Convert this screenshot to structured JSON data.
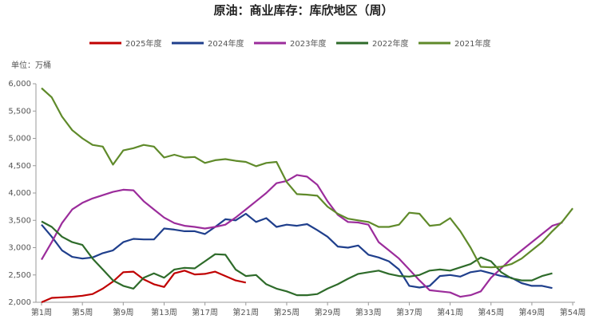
{
  "chart_data": {
    "type": "line",
    "title": "原油：商业库存：库欣地区（周）",
    "unit": "单位：万桶",
    "categories": [
      "第1周",
      null,
      null,
      null,
      "第5周",
      null,
      null,
      null,
      "第9周",
      null,
      null,
      null,
      "第13周",
      null,
      null,
      null,
      "第17周",
      null,
      null,
      null,
      "第21周",
      null,
      null,
      null,
      "第25周",
      null,
      null,
      null,
      "第29周",
      null,
      null,
      null,
      "第33周",
      null,
      null,
      null,
      "第37周",
      null,
      null,
      null,
      "第41周",
      null,
      null,
      null,
      "第45周",
      null,
      null,
      null,
      "第49周",
      null,
      null,
      null,
      "第54周"
    ],
    "ylim": [
      2000,
      6000
    ],
    "yticks": [
      {
        "value": 2000,
        "label": "2,000"
      },
      {
        "value": 2500,
        "label": "2,500"
      },
      {
        "value": 3000,
        "label": "3,000"
      },
      {
        "value": 3500,
        "label": "3,500"
      },
      {
        "value": 4000,
        "label": "4,000"
      },
      {
        "value": 4500,
        "label": "4,500"
      },
      {
        "value": 5000,
        "label": "5,000"
      },
      {
        "value": 5500,
        "label": "5,500"
      },
      {
        "value": 6000,
        "label": "6,000"
      }
    ],
    "series": [
      {
        "name": "2025年度",
        "color": "#c00000",
        "values": [
          2000,
          2080,
          2090,
          2100,
          2120,
          2150,
          2250,
          2380,
          2550,
          2560,
          2420,
          2330,
          2280,
          2530,
          2580,
          2510,
          2520,
          2560,
          2480,
          2400,
          2360,
          null,
          null,
          null,
          null,
          null,
          null,
          null,
          null,
          null,
          null,
          null,
          null,
          null,
          null,
          null,
          null,
          null,
          null,
          null,
          null,
          null,
          null,
          null,
          null,
          null,
          null,
          null,
          null,
          null,
          null,
          null,
          null
        ]
      },
      {
        "name": "2024年度",
        "color": "#1f3f8c",
        "values": [
          3420,
          3200,
          2950,
          2830,
          2800,
          2820,
          2900,
          2950,
          3100,
          3160,
          3150,
          3150,
          3350,
          3330,
          3300,
          3300,
          3250,
          3380,
          3520,
          3500,
          3620,
          3470,
          3540,
          3380,
          3420,
          3400,
          3430,
          3320,
          3200,
          3020,
          3000,
          3040,
          2870,
          2820,
          2750,
          2600,
          2300,
          2270,
          2300,
          2480,
          2500,
          2470,
          2550,
          2580,
          2530,
          2480,
          2450,
          2350,
          2300,
          2300,
          2260,
          null,
          null
        ]
      },
      {
        "name": "2023年度",
        "color": "#9b2c9b",
        "values": [
          2780,
          3100,
          3450,
          3700,
          3820,
          3900,
          3960,
          4020,
          4060,
          4050,
          3850,
          3700,
          3550,
          3450,
          3400,
          3380,
          3350,
          3380,
          3420,
          3550,
          3700,
          3850,
          4000,
          4180,
          4220,
          4330,
          4300,
          4150,
          3850,
          3600,
          3470,
          3460,
          3420,
          3100,
          2950,
          2800,
          2600,
          2400,
          2220,
          2200,
          2180,
          2100,
          2130,
          2200,
          2450,
          2620,
          2800,
          2950,
          3100,
          3250,
          3400,
          3460,
          null
        ]
      },
      {
        "name": "2022年度",
        "color": "#2e6b2a",
        "values": [
          3480,
          3380,
          3200,
          3100,
          3050,
          2800,
          2600,
          2400,
          2300,
          2250,
          2450,
          2530,
          2450,
          2600,
          2630,
          2620,
          2750,
          2880,
          2870,
          2600,
          2480,
          2500,
          2330,
          2250,
          2200,
          2130,
          2130,
          2150,
          2250,
          2330,
          2430,
          2520,
          2550,
          2580,
          2520,
          2480,
          2470,
          2500,
          2580,
          2600,
          2580,
          2640,
          2700,
          2820,
          2750,
          2550,
          2440,
          2400,
          2400,
          2480,
          2530,
          null,
          null
        ]
      },
      {
        "name": "2021年度",
        "color": "#5f8a2a",
        "values": [
          5920,
          5750,
          5400,
          5150,
          5000,
          4880,
          4850,
          4520,
          4780,
          4820,
          4880,
          4850,
          4650,
          4700,
          4650,
          4660,
          4550,
          4600,
          4620,
          4590,
          4570,
          4490,
          4550,
          4570,
          4200,
          3980,
          3970,
          3950,
          3750,
          3620,
          3530,
          3500,
          3470,
          3380,
          3380,
          3420,
          3640,
          3620,
          3400,
          3420,
          3540,
          3300,
          3000,
          2650,
          2640,
          2650,
          2700,
          2800,
          2950,
          3100,
          3300,
          3480,
          3720
        ]
      }
    ]
  }
}
